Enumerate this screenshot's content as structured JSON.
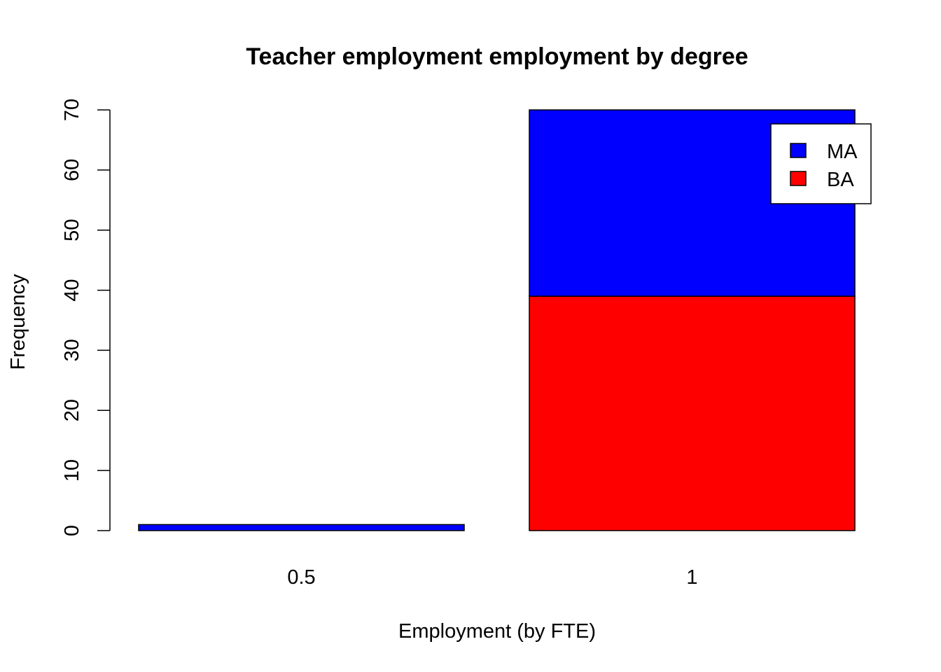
{
  "chart_data": {
    "type": "bar",
    "stacked": true,
    "title": "Teacher employment employment by degree",
    "xlabel": "Employment (by FTE)",
    "ylabel": "Frequency",
    "categories": [
      "0.5",
      "1"
    ],
    "series": [
      {
        "name": "BA",
        "color": "#FF0000",
        "values": [
          0,
          39
        ]
      },
      {
        "name": "MA",
        "color": "#0000FF",
        "values": [
          1,
          31
        ]
      }
    ],
    "ylim": [
      0,
      70
    ],
    "yticks": [
      0,
      10,
      20,
      30,
      40,
      50,
      60,
      70
    ],
    "grid": false,
    "legend": {
      "position": "top-right",
      "order": [
        "MA",
        "BA"
      ]
    }
  }
}
